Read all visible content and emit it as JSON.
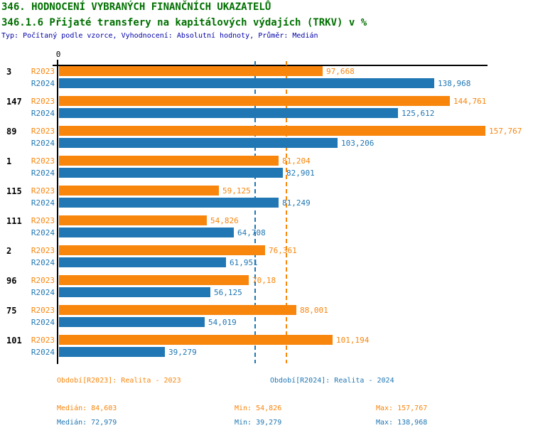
{
  "header": {
    "title1": "346. HODNOCENÍ VYBRANÝCH FINANČNÍCH UKAZATELŮ",
    "title2": "346.1.6 Přijaté transfery na kapitálových výdajích (TRKV) v %",
    "meta": "Typ: Počítaný podle vzorce, Vyhodnocení: Absolutní hodnoty, Průměr: Medián"
  },
  "chart_data": {
    "type": "bar",
    "orientation": "horizontal",
    "title": "346.1.6 Přijaté transfery na kapitálových výdajích (TRKV) v %",
    "x_axis": {
      "zero_label": "0",
      "origin": 0,
      "approx_max": 159
    },
    "grid": false,
    "categories": [
      "3",
      "147",
      "89",
      "1",
      "115",
      "111",
      "2",
      "96",
      "75",
      "101"
    ],
    "series": [
      {
        "name": "R2023",
        "color": "#F8860D",
        "values": [
          97.668,
          144.761,
          157.767,
          81.204,
          59.125,
          54.826,
          76.361,
          70.18,
          88.001,
          101.194
        ],
        "labels": [
          "97,668",
          "144,761",
          "157,767",
          "81,204",
          "59,125",
          "54,826",
          "76,361",
          "70,18",
          "88,001",
          "101,194"
        ]
      },
      {
        "name": "R2024",
        "color": "#2077B4",
        "values": [
          138.968,
          125.612,
          103.206,
          82.901,
          81.249,
          64.708,
          61.951,
          56.125,
          54.019,
          39.279
        ],
        "labels": [
          "138,968",
          "125,612",
          "103,206",
          "82,901",
          "81,249",
          "64,708",
          "61,951",
          "56,125",
          "54,019",
          "39,279"
        ]
      }
    ],
    "reference_lines": [
      {
        "series": "R2023",
        "label": "Medián R2023",
        "value": 84.603,
        "color": "#F8860D",
        "style": "dashed"
      },
      {
        "series": "R2024",
        "label": "Medián R2024",
        "value": 72.979,
        "color": "#2077B4",
        "style": "dashed"
      }
    ],
    "legend_position": "bottom"
  },
  "legend": {
    "r2023": "Období[R2023]: Realita - 2023",
    "r2024": "Období[R2024]: Realita - 2024"
  },
  "stats": {
    "r2023": {
      "median": "Medián: 84,603",
      "min": "Min: 54,826",
      "max": "Max: 157,767"
    },
    "r2024": {
      "median": "Medián: 72,979",
      "min": "Min: 39,279",
      "max": "Max: 138,968"
    }
  }
}
